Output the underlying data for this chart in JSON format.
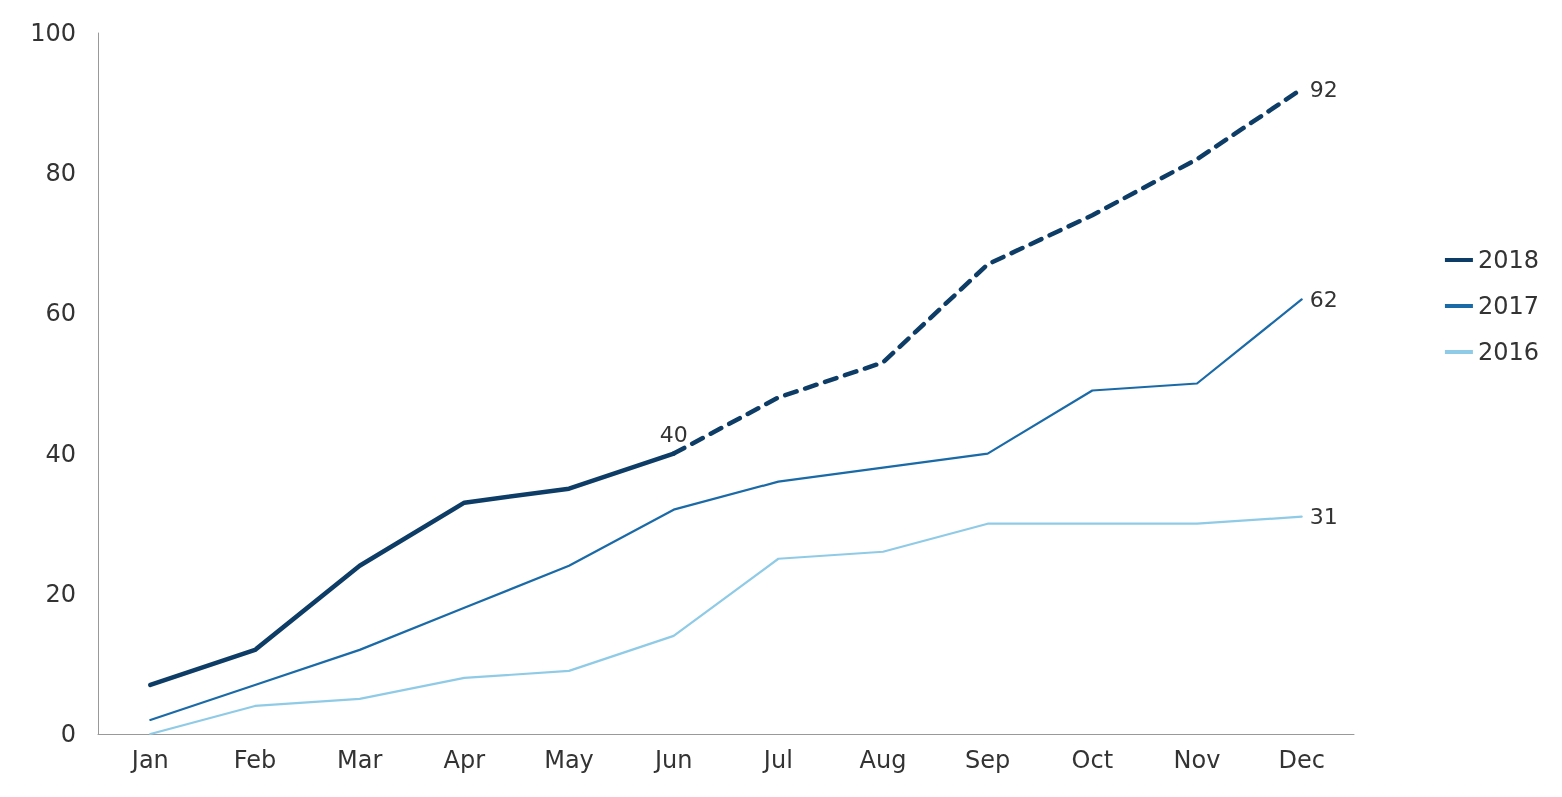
{
  "chart_data": {
    "type": "line",
    "categories": [
      "Jan",
      "Feb",
      "Mar",
      "Apr",
      "May",
      "Jun",
      "Jul",
      "Aug",
      "Sep",
      "Oct",
      "Nov",
      "Dec"
    ],
    "series": [
      {
        "name": "2018",
        "color": "#0d3d66",
        "line_style": "solid",
        "values": [
          7,
          12,
          24,
          33,
          35,
          40,
          null,
          null,
          null,
          null,
          null,
          null
        ],
        "value_labels": [
          null,
          null,
          null,
          null,
          null,
          "40",
          null,
          null,
          null,
          null,
          null,
          null
        ]
      },
      {
        "color": "#0d3d66",
        "line_style": "dashed",
        "values": [
          null,
          null,
          null,
          null,
          null,
          40,
          48,
          53,
          67,
          74,
          82,
          92
        ],
        "value_labels": [
          null,
          null,
          null,
          null,
          null,
          null,
          null,
          null,
          null,
          null,
          null,
          "92"
        ]
      },
      {
        "name": "2017",
        "color": "#1a6aa8",
        "line_style": "solid",
        "values": [
          2,
          7,
          12,
          18,
          24,
          32,
          36,
          38,
          40,
          49,
          50,
          62
        ],
        "value_labels": [
          null,
          null,
          null,
          null,
          null,
          null,
          null,
          null,
          null,
          null,
          null,
          "62"
        ]
      },
      {
        "name": "2016",
        "color": "#8fcbe6",
        "line_style": "solid",
        "values": [
          0,
          4,
          5,
          8,
          9,
          14,
          25,
          26,
          30,
          30,
          30,
          31
        ],
        "value_labels": [
          null,
          null,
          null,
          null,
          null,
          null,
          null,
          null,
          null,
          null,
          null,
          "31"
        ]
      }
    ],
    "ylim": [
      0,
      100
    ],
    "yticks": [
      0,
      20,
      40,
      60,
      80,
      100
    ],
    "grid": false,
    "legend": "right",
    "marker": "none"
  }
}
